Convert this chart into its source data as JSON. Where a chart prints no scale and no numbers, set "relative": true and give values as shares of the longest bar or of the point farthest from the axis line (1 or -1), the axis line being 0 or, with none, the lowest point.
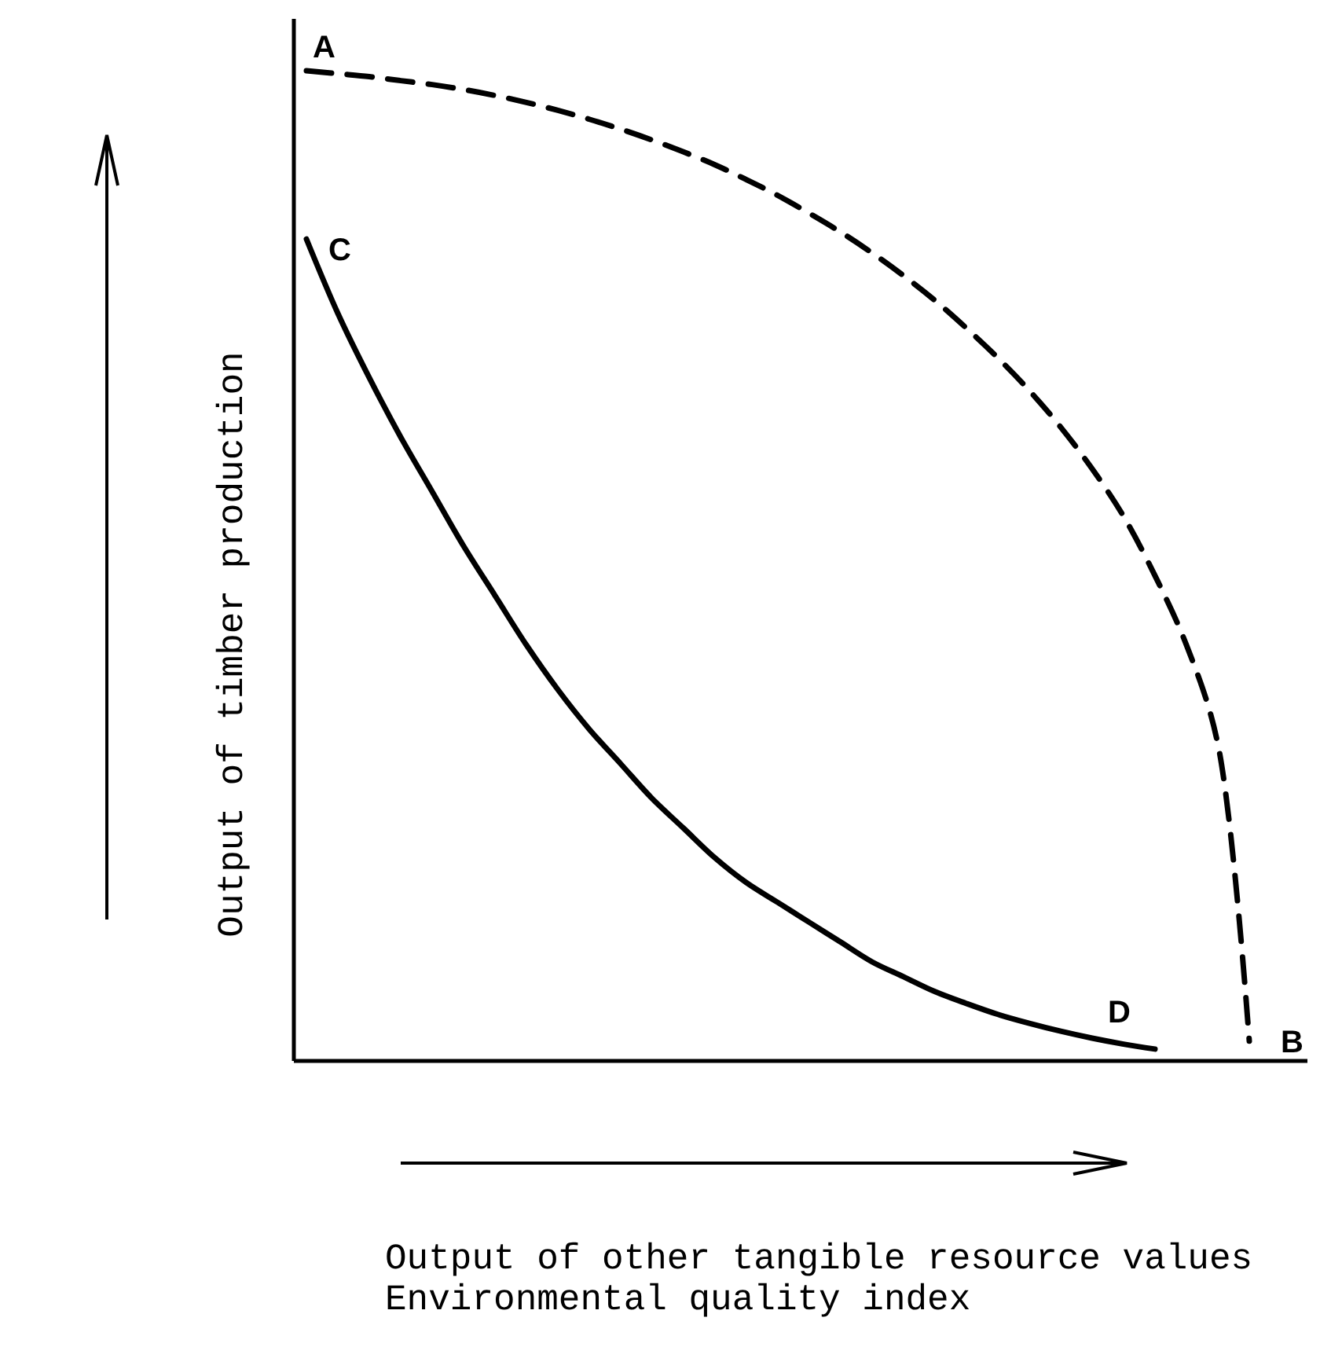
{
  "chart_data": {
    "type": "line",
    "relative": true,
    "xlabel": "Output of other tangible resource values\nEnvironmental quality index",
    "ylabel": "Output of timber production",
    "categories": [
      null,
      null,
      null,
      null,
      null,
      null,
      null,
      null,
      null,
      null,
      null,
      null,
      null,
      null,
      null,
      null,
      null,
      null,
      null,
      null,
      null,
      null,
      null,
      null,
      null,
      null,
      null,
      null,
      null,
      null,
      null
    ],
    "series": [
      {
        "color": "#000000",
        "line_style": "dashed",
        "values": [
          1.0,
          0.997,
          0.994,
          0.99,
          0.986,
          0.981,
          0.975,
          0.968,
          0.96,
          0.951,
          0.941,
          0.93,
          0.918,
          0.905,
          0.89,
          0.874,
          0.856,
          0.837,
          0.816,
          0.793,
          0.768,
          0.74,
          0.71,
          0.677,
          0.64,
          0.598,
          0.55,
          0.49,
          0.42,
          0.32,
          0.02
        ]
      },
      {
        "color": "#000000",
        "line_style": "solid",
        "values": [
          0.83,
          0.755,
          0.69,
          0.63,
          0.575,
          0.52,
          0.47,
          0.42,
          0.375,
          0.335,
          0.3,
          0.265,
          0.235,
          0.205,
          0.18,
          0.16,
          0.14,
          0.12,
          0.1,
          0.085,
          0.07,
          0.058,
          0.047,
          0.038,
          0.03,
          0.023,
          0.017,
          0.012,
          null,
          null,
          null
        ]
      }
    ],
    "annotations": [
      "A",
      "B",
      "C",
      "D"
    ]
  }
}
